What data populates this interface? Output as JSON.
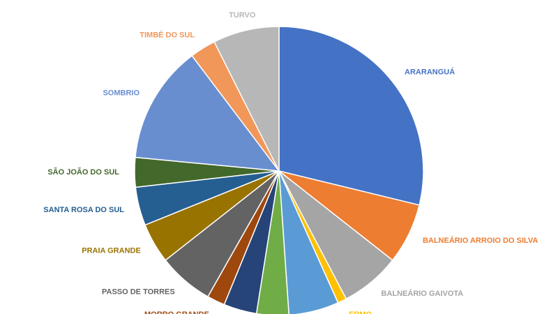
{
  "chart_data": {
    "type": "pie",
    "categories": [
      "ARARANGUÁ",
      "BALNEÁRIO ARROIO DO SILVA",
      "BALNEÁRIO GAIVOTA",
      "ERMO",
      null,
      null,
      null,
      "MORRO GRANDE",
      "PASSO DE TORRES",
      "PRAIA GRANDE",
      "SANTA ROSA DO SUL",
      "SÃO JOÃO DO SUL",
      "SOMBRIO",
      "TIMBÉ DO SUL",
      "TURVO"
    ],
    "values": [
      28.8,
      6.8,
      6.7,
      1.0,
      5.6,
      3.6,
      3.7,
      2.0,
      6.2,
      4.5,
      4.3,
      3.3,
      13.2,
      2.9,
      7.4
    ],
    "colors": [
      "#4472c4",
      "#ed7d31",
      "#a5a5a5",
      "#ffc000",
      "#5b9bd5",
      "#70ad47",
      "#264478",
      "#9e480e",
      "#636363",
      "#997300",
      "#255e91",
      "#43682b",
      "#698ed0",
      "#f1975a",
      "#b7b7b7"
    ]
  }
}
